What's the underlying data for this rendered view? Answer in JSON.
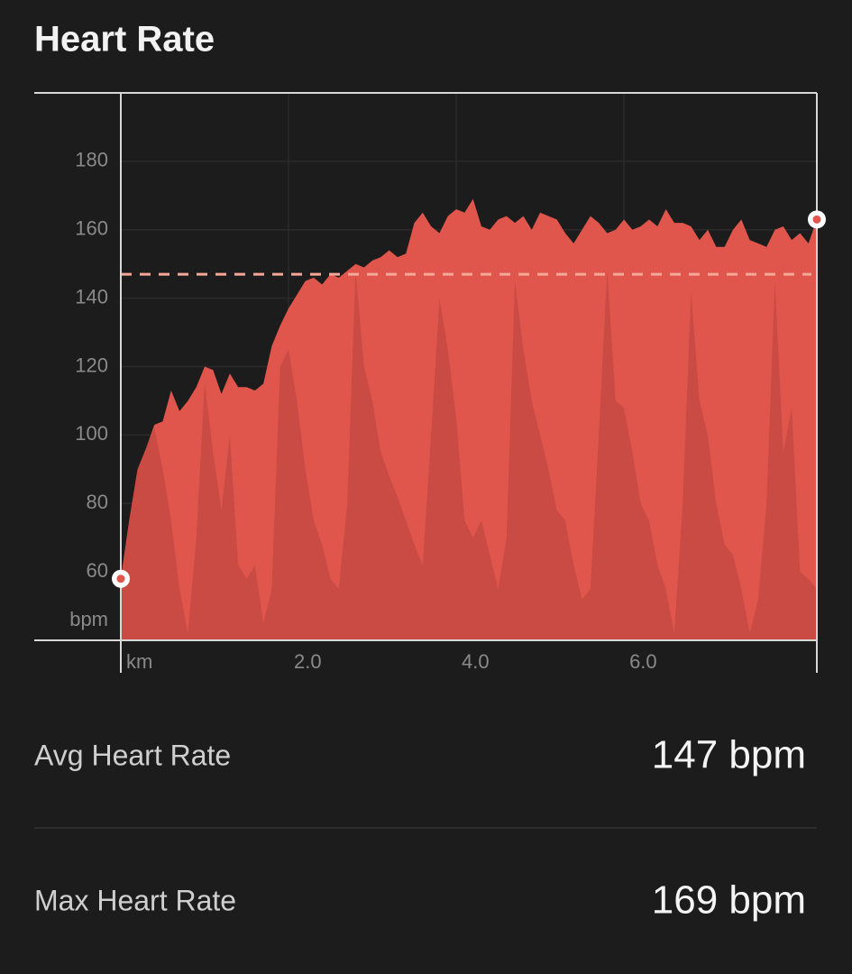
{
  "title": "Heart Rate",
  "chart_data": {
    "type": "area",
    "x_unit": "km",
    "y_unit": "bpm",
    "x": [
      0,
      0.1,
      0.2,
      0.3,
      0.4,
      0.5,
      0.6,
      0.7,
      0.8,
      0.9,
      1.0,
      1.1,
      1.2,
      1.3,
      1.4,
      1.5,
      1.6,
      1.7,
      1.8,
      1.9,
      2.0,
      2.1,
      2.2,
      2.3,
      2.4,
      2.5,
      2.6,
      2.7,
      2.8,
      2.9,
      3.0,
      3.1,
      3.2,
      3.3,
      3.4,
      3.5,
      3.6,
      3.7,
      3.8,
      3.9,
      4.0,
      4.1,
      4.2,
      4.3,
      4.4,
      4.5,
      4.6,
      4.7,
      4.8,
      4.9,
      5.0,
      5.1,
      5.2,
      5.3,
      5.4,
      5.5,
      5.6,
      5.7,
      5.8,
      5.9,
      6.0,
      6.1,
      6.2,
      6.3,
      6.4,
      6.5,
      6.6,
      6.7,
      6.8,
      6.9,
      7.0,
      7.1,
      7.2,
      7.3,
      7.4,
      7.5,
      7.6,
      7.7,
      7.8,
      7.9,
      8.0,
      8.1,
      8.2,
      8.3
    ],
    "series": [
      {
        "color": "#e0564c",
        "values": [
          58,
          75,
          90,
          96,
          103,
          104,
          113,
          107,
          110,
          114,
          120,
          119,
          112,
          118,
          114,
          114,
          113,
          115,
          126,
          132,
          137,
          141,
          145,
          146,
          144,
          147,
          146,
          148,
          150,
          149,
          151,
          152,
          154,
          152,
          153,
          162,
          165,
          161,
          159,
          164,
          166,
          165,
          169,
          161,
          160,
          163,
          164,
          162,
          164,
          160,
          165,
          164,
          163,
          159,
          156,
          160,
          164,
          162,
          159,
          160,
          163,
          160,
          161,
          163,
          161,
          166,
          162,
          162,
          161,
          157,
          160,
          155,
          155,
          160,
          163,
          157,
          156,
          155,
          160,
          161,
          157,
          159,
          156,
          163
        ]
      },
      {
        "color": "#c94b44",
        "values": [
          58,
          75,
          90,
          96,
          102,
          90,
          75,
          55,
          42,
          70,
          115,
          95,
          78,
          100,
          62,
          58,
          62,
          45,
          55,
          120,
          125,
          110,
          90,
          75,
          68,
          58,
          55,
          80,
          148,
          120,
          110,
          95,
          88,
          82,
          75,
          68,
          62,
          100,
          140,
          125,
          105,
          75,
          70,
          75,
          65,
          55,
          70,
          145,
          125,
          110,
          100,
          90,
          78,
          75,
          62,
          52,
          55,
          100,
          148,
          110,
          108,
          95,
          80,
          75,
          62,
          55,
          42,
          80,
          142,
          110,
          100,
          80,
          68,
          65,
          55,
          42,
          52,
          80,
          145,
          95,
          108,
          60,
          58,
          55
        ]
      }
    ],
    "reference_line": 147,
    "reference_color": "#f5a898",
    "xlim": [
      0,
      8.3
    ],
    "ylim": [
      40,
      200
    ],
    "xticks": [
      {
        "value": 2,
        "label": "2.0"
      },
      {
        "value": 4,
        "label": "4.0"
      },
      {
        "value": 6,
        "label": "6.0"
      }
    ],
    "yticks": [
      60,
      80,
      100,
      120,
      140,
      160,
      180
    ],
    "grid": true
  },
  "stats": [
    {
      "label": "Avg Heart Rate",
      "value": "147 bpm"
    },
    {
      "label": "Max Heart Rate",
      "value": "169 bpm"
    }
  ]
}
